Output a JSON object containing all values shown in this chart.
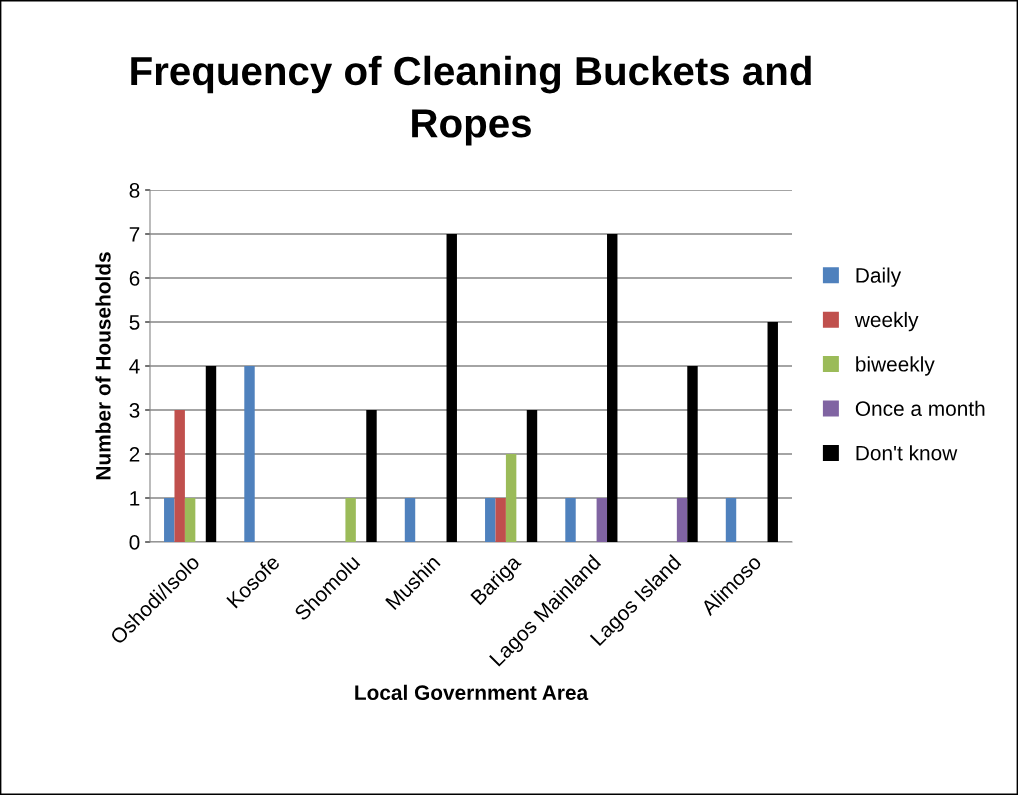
{
  "chart_data": {
    "type": "bar",
    "title": "Frequency of Cleaning Buckets and\nRopes",
    "xlabel": "Local Government Area",
    "ylabel": "Number of Households",
    "categories": [
      "Oshodi/Isolo",
      "Kosofe",
      "Shomolu",
      "Mushin",
      "Bariga",
      "Lagos Mainland",
      "Lagos Island",
      "Alimoso"
    ],
    "series": [
      {
        "name": "Daily",
        "color": "#4f81bd",
        "values": [
          1,
          4,
          0,
          1,
          1,
          1,
          0,
          1
        ]
      },
      {
        "name": "weekly",
        "color": "#c0504d",
        "values": [
          3,
          0,
          0,
          0,
          1,
          0,
          0,
          0
        ]
      },
      {
        "name": "biweekly",
        "color": "#9bbb59",
        "values": [
          1,
          0,
          1,
          0,
          2,
          0,
          0,
          0
        ]
      },
      {
        "name": "Once a month",
        "color": "#8064a2",
        "values": [
          0,
          0,
          0,
          0,
          0,
          1,
          1,
          0
        ]
      },
      {
        "name": "Don't know",
        "color": "#000000",
        "values": [
          4,
          0,
          3,
          7,
          3,
          7,
          4,
          5
        ]
      }
    ],
    "ylim": [
      0,
      8
    ],
    "yticks": [
      0,
      1,
      2,
      3,
      4,
      5,
      6,
      7,
      8
    ],
    "grid": "y",
    "legend": "right"
  }
}
